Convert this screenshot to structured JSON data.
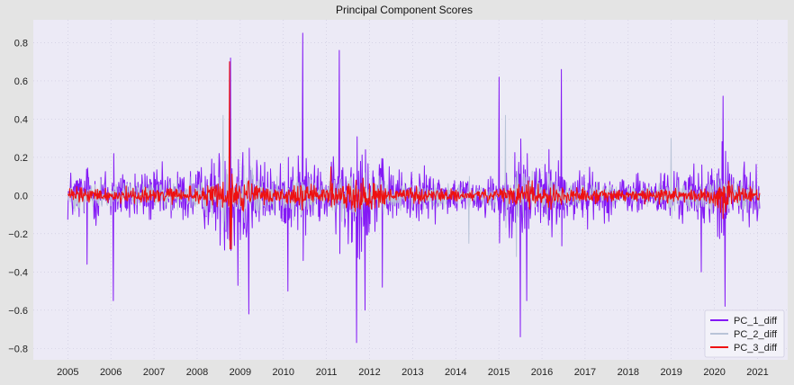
{
  "chart_data": {
    "type": "line",
    "title": "Principal Component Scores",
    "xlabel": "",
    "ylabel": "",
    "x_ticks": [
      "2005",
      "2006",
      "2007",
      "2008",
      "2009",
      "2010",
      "2011",
      "2012",
      "2013",
      "2014",
      "2015",
      "2016",
      "2017",
      "2018",
      "2019",
      "2020",
      "2021"
    ],
    "xlim": [
      2004.2,
      2021.7
    ],
    "y_ticks": [
      "−0.8",
      "−0.6",
      "−0.4",
      "−0.2",
      "0.0",
      "0.2",
      "0.4",
      "0.6",
      "0.8"
    ],
    "ylim": [
      -0.86,
      0.92
    ],
    "grid": true,
    "legend_position": "bottom-right",
    "series": [
      {
        "name": "PC_1_diff",
        "color": "#8419f5",
        "amplitude": 0.12,
        "spikes": [
          {
            "x": 2006.05,
            "y": -0.55
          },
          {
            "x": 2008.78,
            "y": 0.72
          },
          {
            "x": 2008.95,
            "y": -0.47
          },
          {
            "x": 2009.2,
            "y": -0.62
          },
          {
            "x": 2010.45,
            "y": 0.85
          },
          {
            "x": 2010.1,
            "y": -0.5
          },
          {
            "x": 2011.3,
            "y": 0.76
          },
          {
            "x": 2011.7,
            "y": -0.77
          },
          {
            "x": 2011.9,
            "y": -0.6
          },
          {
            "x": 2012.3,
            "y": -0.48
          },
          {
            "x": 2015.0,
            "y": 0.62
          },
          {
            "x": 2015.5,
            "y": -0.74
          },
          {
            "x": 2015.65,
            "y": -0.55
          },
          {
            "x": 2016.45,
            "y": 0.66
          },
          {
            "x": 2020.2,
            "y": 0.52
          },
          {
            "x": 2020.25,
            "y": -0.58
          },
          {
            "x": 2019.7,
            "y": -0.4
          },
          {
            "x": 2005.45,
            "y": -0.36
          }
        ]
      },
      {
        "name": "PC_2_diff",
        "color": "#b9c4d8",
        "amplitude": 0.06,
        "spikes": [
          {
            "x": 2008.6,
            "y": 0.42
          },
          {
            "x": 2015.15,
            "y": 0.42
          },
          {
            "x": 2015.4,
            "y": -0.32
          },
          {
            "x": 2019.0,
            "y": 0.3
          },
          {
            "x": 2014.3,
            "y": -0.25
          }
        ]
      },
      {
        "name": "PC_3_diff",
        "color": "#ee1111",
        "amplitude": 0.035,
        "spikes": [
          {
            "x": 2008.75,
            "y": 0.7
          },
          {
            "x": 2008.8,
            "y": -0.28
          },
          {
            "x": 2011.1,
            "y": 0.15
          },
          {
            "x": 2020.2,
            "y": -0.12
          }
        ]
      }
    ]
  }
}
